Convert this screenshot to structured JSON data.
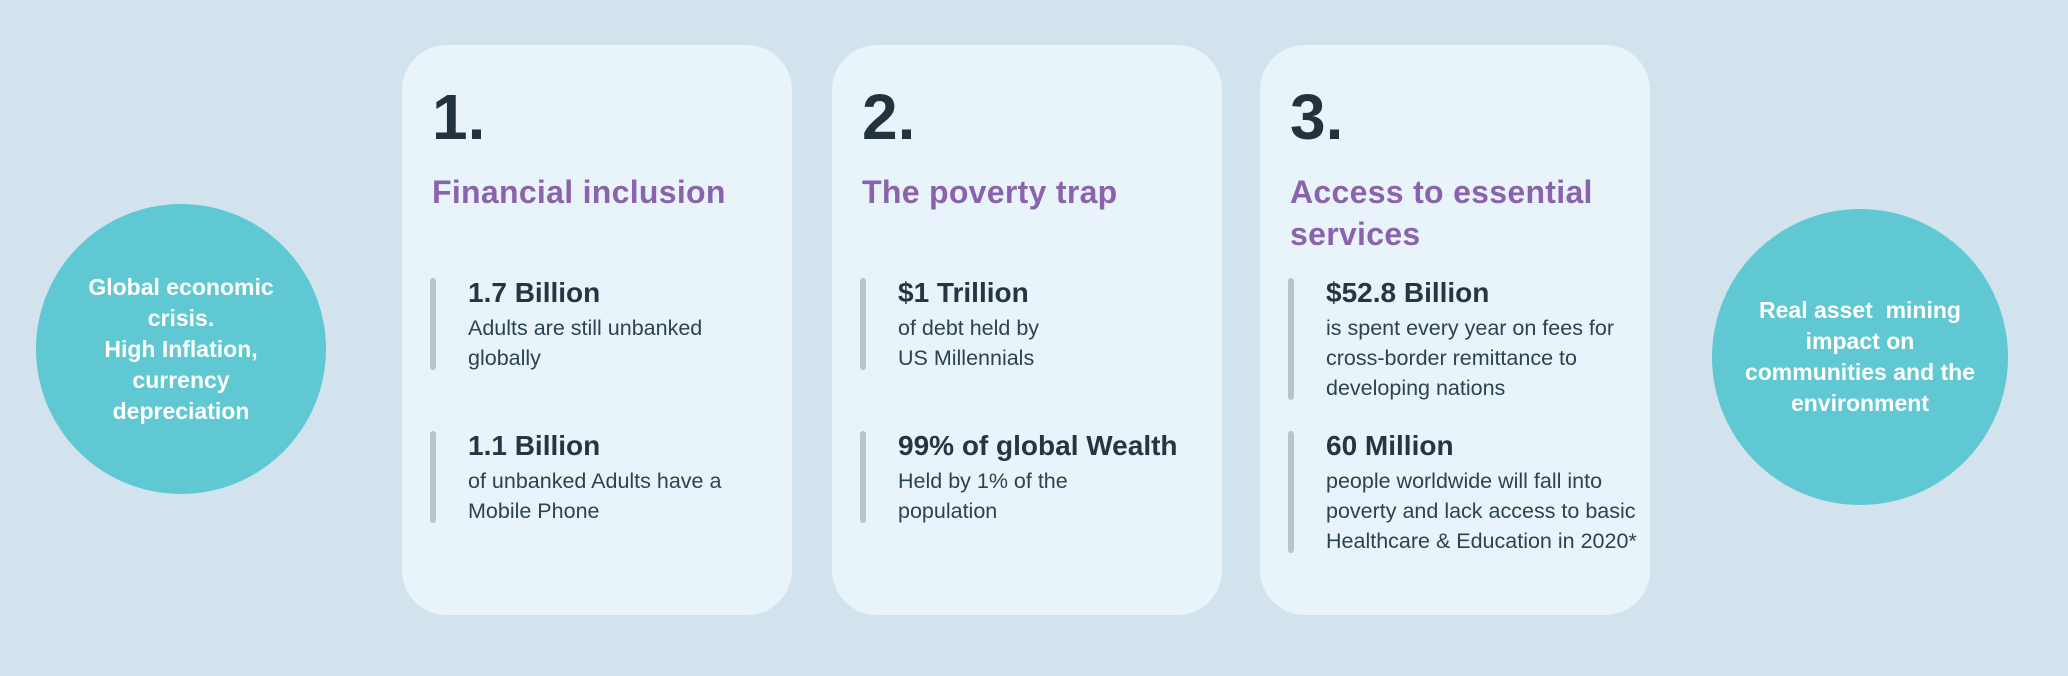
{
  "colors": {
    "bg": "#d3e3ee",
    "card": "#e9f4fa",
    "circle": "#5fc8d2",
    "purple": "#8a63ad",
    "navy": "#243641",
    "desc": "#2c4250",
    "bar": "#b9c3ca"
  },
  "left_circle": {
    "lines": [
      "Global economic",
      "crisis.",
      "High Inflation,",
      "currency",
      "depreciation"
    ]
  },
  "right_circle": {
    "lines": [
      "Real asset  mining",
      "impact on",
      "communities and the",
      "environment"
    ]
  },
  "cards": [
    {
      "number": "1.",
      "title": [
        "Financial inclusion"
      ],
      "stats": [
        {
          "value": "1.7 Billion",
          "desc": [
            "Adults are still unbanked",
            "globally"
          ]
        },
        {
          "value": "1.1 Billion",
          "desc": [
            "of unbanked Adults have a",
            "Mobile Phone"
          ]
        }
      ]
    },
    {
      "number": "2.",
      "title": [
        "The poverty trap"
      ],
      "stats": [
        {
          "value": "$1 Trillion",
          "desc": [
            "of debt held by",
            "US Millennials"
          ]
        },
        {
          "value": "99% of global Wealth",
          "desc": [
            "Held by 1% of the",
            "population"
          ]
        }
      ]
    },
    {
      "number": "3.",
      "title": [
        "Access to essential",
        "services"
      ],
      "stats": [
        {
          "value": "$52.8 Billion",
          "desc": [
            "is spent every year on fees for",
            "cross-border remittance to",
            "developing nations"
          ]
        },
        {
          "value": "60 Million",
          "desc": [
            "people worldwide will fall into",
            "poverty and lack access to basic",
            "Healthcare & Education in 2020*"
          ]
        }
      ]
    }
  ]
}
